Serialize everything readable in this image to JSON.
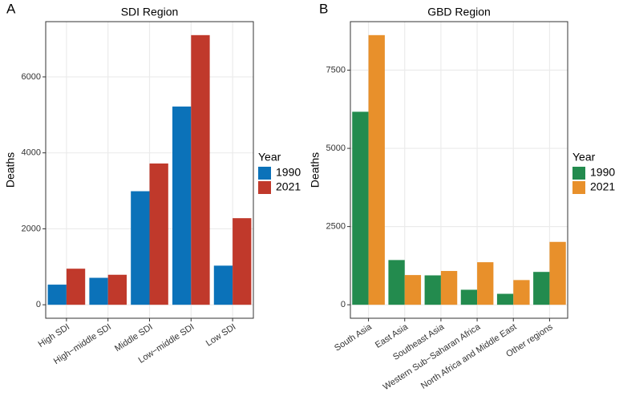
{
  "chart_data": [
    {
      "type": "bar",
      "tag": "A",
      "title": "SDI Region",
      "ylabel": "Deaths",
      "legend_title": "Year",
      "grid": true,
      "categories": [
        "High SDI",
        "High−middle SDI",
        "Middle SDI",
        "Low−middle SDI",
        "Low SDI"
      ],
      "series": [
        {
          "name": "1990",
          "color": "#0b72b9",
          "values": [
            530,
            710,
            2990,
            5220,
            1030
          ]
        },
        {
          "name": "2021",
          "color": "#c0392b",
          "values": [
            950,
            790,
            3720,
            7100,
            2280
          ]
        }
      ],
      "ylim": [
        -355,
        7455
      ],
      "yticks": [
        0,
        2000,
        4000,
        6000
      ]
    },
    {
      "type": "bar",
      "tag": "B",
      "title": "GBD Region",
      "ylabel": "Deaths",
      "legend_title": "Year",
      "grid": true,
      "categories": [
        "South Asia",
        "East Asia",
        "Southeast Asia",
        "Western Sub−Saharan Africa",
        "North Africa and Middle East",
        "Other regions"
      ],
      "series": [
        {
          "name": "1990",
          "color": "#238b4e",
          "values": [
            6170,
            1430,
            940,
            480,
            350,
            1050
          ]
        },
        {
          "name": "2021",
          "color": "#e8902b",
          "values": [
            8620,
            950,
            1080,
            1360,
            790,
            2010
          ]
        }
      ],
      "ylim": [
        -431,
        9051
      ],
      "yticks": [
        0,
        2500,
        5000,
        7500
      ]
    }
  ]
}
